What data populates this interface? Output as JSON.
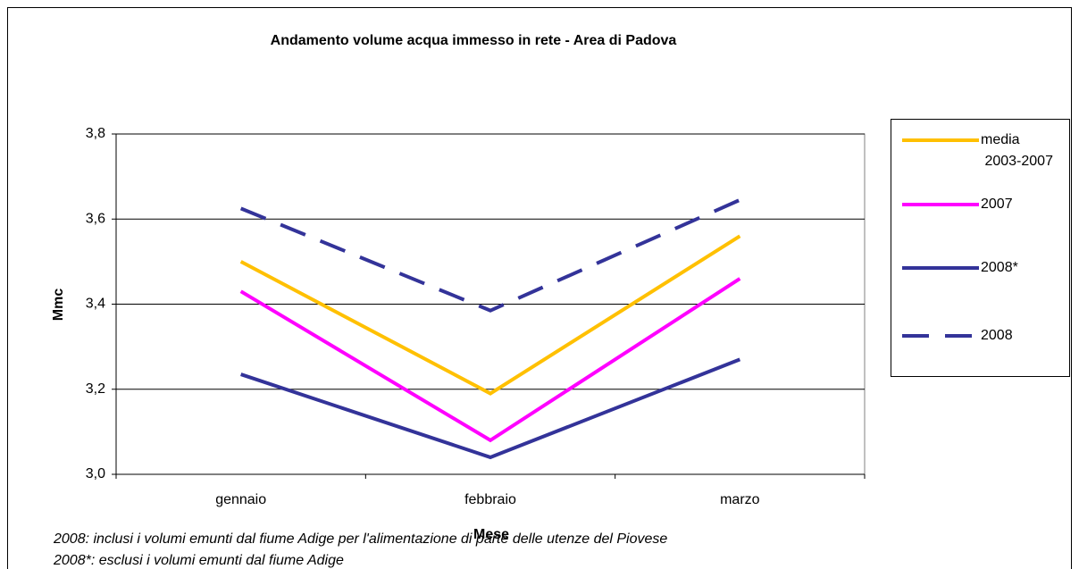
{
  "chart_data": {
    "type": "line",
    "title": "Andamento volume acqua immesso in rete - Area di Padova",
    "xlabel": "Mese",
    "ylabel": "Mmc",
    "categories": [
      "gennaio",
      "febbraio",
      "marzo"
    ],
    "series": [
      {
        "name": "media 2003-2007",
        "color": "#ffc000",
        "dash": false,
        "values": [
          3.5,
          3.19,
          3.56
        ]
      },
      {
        "name": "2007",
        "color": "#ff00ff",
        "dash": false,
        "values": [
          3.43,
          3.08,
          3.46
        ]
      },
      {
        "name": "2008*",
        "color": "#333399",
        "dash": false,
        "values": [
          3.235,
          3.04,
          3.27
        ]
      },
      {
        "name": "2008",
        "color": "#333399",
        "dash": true,
        "values": [
          3.625,
          3.385,
          3.645
        ]
      }
    ],
    "ylim": [
      3.0,
      3.8
    ],
    "yticks": [
      {
        "value": 3.0,
        "label": "3,0"
      },
      {
        "value": 3.2,
        "label": "3,2"
      },
      {
        "value": 3.4,
        "label": "3,4"
      },
      {
        "value": 3.6,
        "label": "3,6"
      },
      {
        "value": 3.8,
        "label": "3,8"
      }
    ],
    "grid": true,
    "legend": "right",
    "annotations": [
      "2008: inclusi i volumi emunti dal fiume Adige per l'alimentazione di parte delle utenze del Piovese",
      "2008*: esclusi i volumi emunti dal fiume Adige"
    ]
  }
}
